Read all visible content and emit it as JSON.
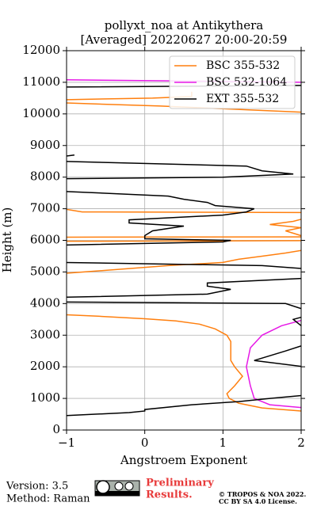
{
  "chart_data": {
    "type": "line",
    "title": [
      "pollyxt_noa at Antikythera",
      "[Averaged] 20220627 20:00-20:59"
    ],
    "xlabel": "Angstroem Exponent",
    "ylabel": "Height (m)",
    "xlim": [
      -1,
      2
    ],
    "xticks": [
      {
        "value": -1,
        "label": "−1"
      },
      0,
      1,
      2
    ],
    "ylim": [
      0,
      12000
    ],
    "yticks": [
      0,
      1000,
      2000,
      3000,
      4000,
      5000,
      6000,
      7000,
      8000,
      9000,
      10000,
      11000,
      12000
    ],
    "grid": true,
    "legend": "upper right",
    "series": [
      {
        "name": "BSC 355-532",
        "color": "#ff7f0e",
        "y": [
          600,
          700,
          850,
          1000,
          1150,
          1400,
          1700,
          2000,
          2200,
          2500,
          2800,
          3000,
          3200,
          3350,
          3450,
          3520,
          3600,
          3650,
          null,
          4950,
          5050,
          5200,
          5300,
          5400,
          5500,
          5600,
          5700,
          null,
          5970,
          5990,
          null,
          6100,
          6110,
          6300,
          6400,
          6500,
          6600,
          6700,
          null,
          6880,
          6900,
          7000,
          null,
          10050,
          10250,
          10350,
          null,
          10450,
          10500,
          10550,
          10700
        ],
        "values": [
          2.0,
          1.5,
          1.2,
          1.08,
          1.05,
          1.15,
          1.25,
          1.15,
          1.1,
          1.1,
          1.1,
          1.05,
          0.9,
          0.7,
          0.4,
          0,
          -0.6,
          -1.05,
          null,
          -1.05,
          -0.5,
          0.3,
          1.0,
          1.2,
          1.5,
          1.8,
          2.05,
          null,
          -1.05,
          2.05,
          null,
          -1.05,
          2.05,
          1.8,
          2.0,
          1.6,
          1.9,
          2.05,
          null,
          2.05,
          -0.8,
          -1.05,
          null,
          2.05,
          0.2,
          -1.05,
          null,
          -1.05,
          0.1,
          0.6,
          0.6
        ]
      },
      {
        "name": "BSC 532-1064",
        "color": "#e619e6",
        "y": [
          700,
          800,
          1000,
          1400,
          2000,
          2600,
          3000,
          3300,
          3500,
          null,
          11000,
          11080
        ],
        "values": [
          2.05,
          1.6,
          1.4,
          1.35,
          1.3,
          1.35,
          1.5,
          1.75,
          2.05,
          null,
          2.05,
          -1.05
        ]
      },
      {
        "name": "EXT 355-532",
        "color": "#000000",
        "y": [
          450,
          550,
          600,
          650,
          800,
          900,
          1000,
          1100,
          null,
          2000,
          2200,
          2500,
          2700,
          null,
          3200,
          3500,
          3600,
          null,
          3800,
          4000,
          4050,
          null,
          4200,
          4300,
          4450,
          4550,
          4650,
          4800,
          null,
          5100,
          5200,
          5300,
          null,
          5850,
          5950,
          6000,
          6050,
          6150,
          6300,
          6450,
          6550,
          6650,
          6800,
          6900,
          7000,
          7100,
          7200,
          7300,
          7400,
          7550,
          null,
          7950,
          8000,
          8100,
          8200,
          8350,
          8500,
          null,
          8650,
          8700,
          null,
          10850,
          10900
        ],
        "values": [
          -1.05,
          -0.2,
          0,
          0,
          0.6,
          1.2,
          1.6,
          2.05,
          null,
          2.05,
          1.4,
          1.8,
          2.05,
          null,
          2.05,
          1.9,
          2.05,
          null,
          2.05,
          1.8,
          -1.05,
          null,
          -1.05,
          0.8,
          1.1,
          0.8,
          0.8,
          2.05,
          null,
          2.05,
          1.5,
          -1.05,
          null,
          -1.05,
          1.0,
          1.1,
          0,
          0,
          0.1,
          0.5,
          -0.2,
          -0.2,
          1.0,
          1.3,
          1.4,
          0.9,
          0.8,
          0.5,
          0.3,
          -1.05,
          null,
          -1.05,
          1.0,
          1.9,
          1.5,
          1.3,
          -1.05,
          null,
          -1.05,
          -0.9,
          null,
          -1.05,
          2.05
        ]
      }
    ]
  },
  "footer": {
    "version": "Version: 3.5",
    "method": "Method: Raman",
    "status": [
      "Preliminary",
      "Results."
    ],
    "copyright": [
      "© TROPOS & NOA 2022.",
      "CC BY SA 4.0 License."
    ]
  }
}
